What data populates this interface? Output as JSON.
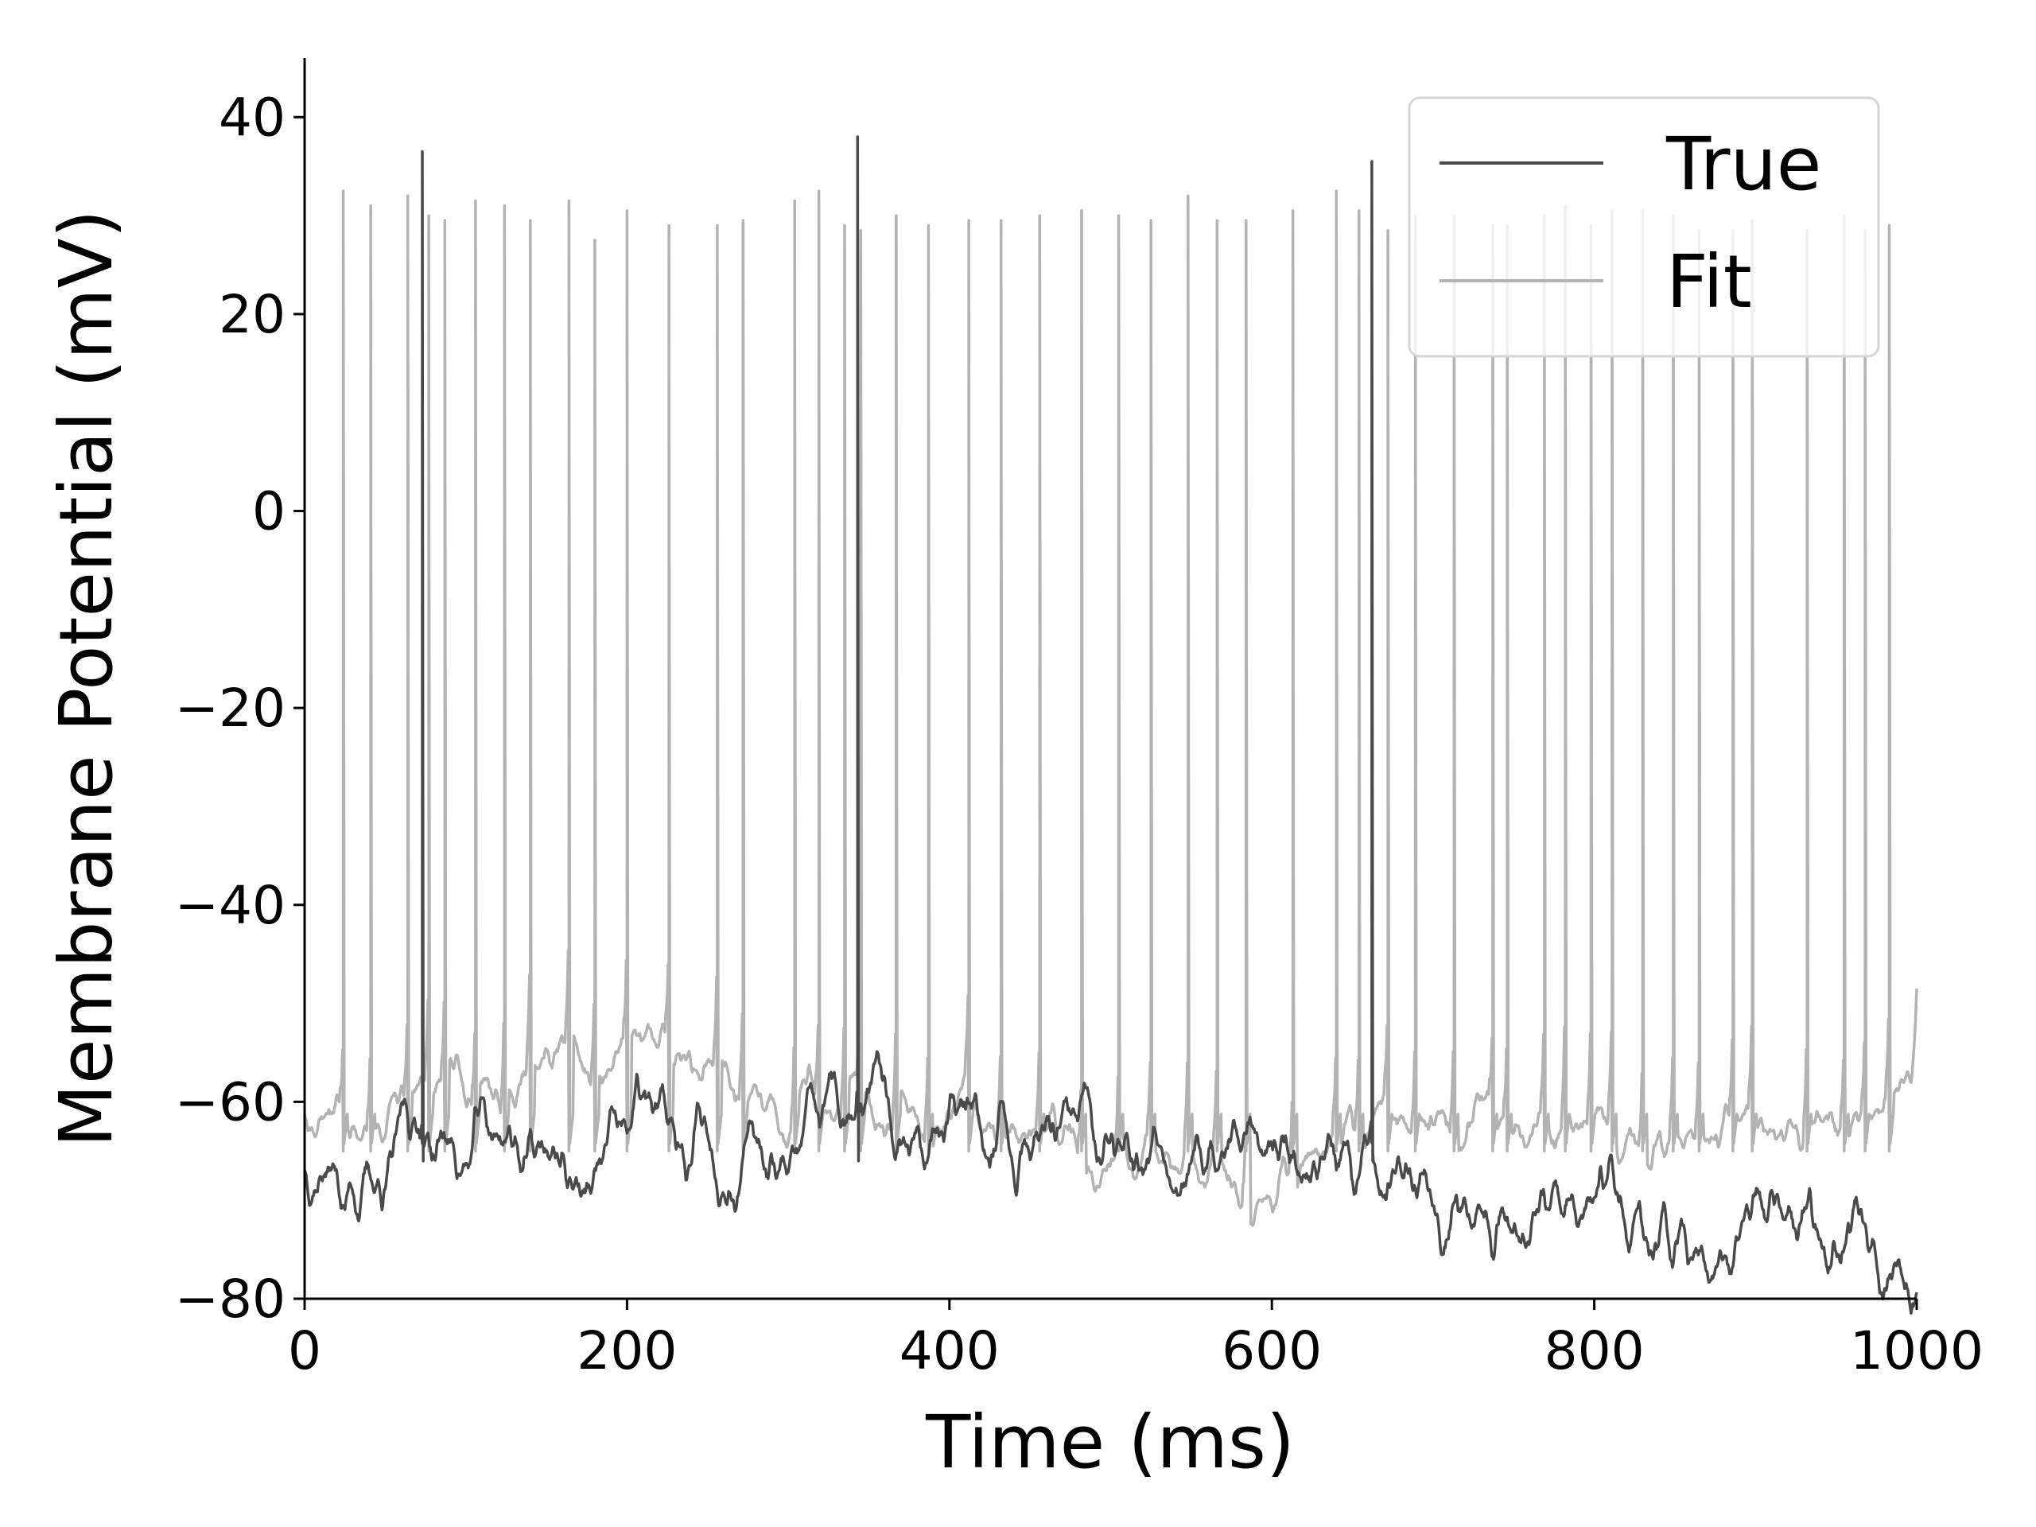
{
  "chart_data": {
    "type": "line",
    "xlabel": "Time (ms)",
    "ylabel": "Membrane Potential (mV)",
    "xlim": [
      0,
      1000
    ],
    "ylim": [
      -80,
      46
    ],
    "xticks": [
      0,
      200,
      400,
      600,
      800,
      1000
    ],
    "xtick_labels": [
      "0",
      "200",
      "400",
      "600",
      "800",
      "1000"
    ],
    "yticks": [
      -80,
      -60,
      -40,
      -20,
      0,
      20,
      40
    ],
    "ytick_labels": [
      "−80",
      "−60",
      "−40",
      "−20",
      "0",
      "20",
      "40"
    ],
    "grid": false,
    "legend_position": "top-right",
    "series": [
      {
        "name": "True",
        "color": "#4a4a4a",
        "resting_potential_mv": -66.5,
        "spike_times_ms": [
          73,
          343,
          662
        ],
        "spike_peaks_mv": [
          36.5,
          38,
          35.5
        ]
      },
      {
        "name": "Fit",
        "color": "#b3b3b3",
        "resting_potential_mv": -61,
        "final_value_mv": -48.5,
        "spike_times_ms": [
          24,
          41,
          64,
          77,
          87,
          106,
          124,
          140,
          164,
          180,
          200,
          226,
          256,
          272,
          304,
          319,
          335,
          345,
          367,
          387,
          412,
          432,
          456,
          482,
          505,
          525,
          548,
          566,
          584,
          613,
          640,
          654,
          672,
          689,
          713,
          737,
          746,
          769,
          782,
          798,
          811,
          830,
          849,
          865,
          886,
          898,
          932,
          955,
          968,
          983
        ],
        "spike_peaks_mv": [
          32.5,
          31,
          32,
          30,
          29.5,
          31.5,
          31,
          29.5,
          31.5,
          27.5,
          30.5,
          29,
          29,
          29.5,
          31.5,
          32.5,
          29,
          28.5,
          30,
          29,
          29.5,
          29.5,
          30,
          30.5,
          30,
          29.5,
          32,
          29.5,
          29.5,
          30.5,
          32.5,
          30.5,
          28.5,
          30,
          30,
          29,
          29,
          30,
          31,
          29,
          30.5,
          30.5,
          30,
          28.5,
          28.5,
          29.5,
          28.5,
          30,
          28.5,
          29
        ]
      }
    ]
  }
}
